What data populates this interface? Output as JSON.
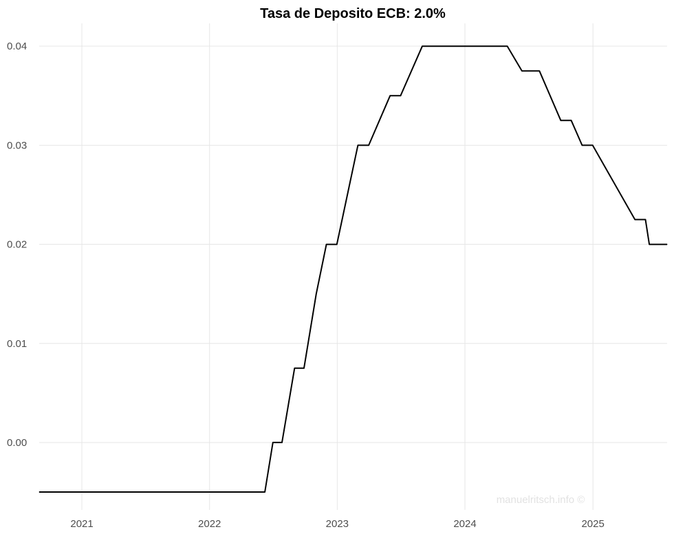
{
  "chart_data": {
    "type": "line",
    "title": "Tasa de Deposito ECB: 2.0%",
    "xlabel": "",
    "ylabel": "",
    "x_ticks": [
      "2021",
      "2022",
      "2023",
      "2024",
      "2025"
    ],
    "y_ticks": [
      "0.00",
      "0.01",
      "0.02",
      "0.03",
      "0.04"
    ],
    "xlim": [
      "2020-09-01",
      "2025-08-01"
    ],
    "ylim": [
      -0.0068,
      0.0423
    ],
    "grid": true,
    "legend": "none",
    "line_color": "#000000",
    "series": [
      {
        "points": [
          [
            "2020-09-01",
            -0.005
          ],
          [
            "2022-06-08",
            -0.005
          ],
          [
            "2022-07-01",
            0.0
          ],
          [
            "2022-07-27",
            0.0
          ],
          [
            "2022-09-01",
            0.0075
          ],
          [
            "2022-09-28",
            0.0075
          ],
          [
            "2022-11-02",
            0.015
          ],
          [
            "2022-12-01",
            0.02
          ],
          [
            "2022-12-31",
            0.02
          ],
          [
            "2023-03-01",
            0.03
          ],
          [
            "2023-04-01",
            0.03
          ],
          [
            "2023-06-01",
            0.035
          ],
          [
            "2023-07-01",
            0.035
          ],
          [
            "2023-09-01",
            0.04
          ],
          [
            "2024-05-01",
            0.04
          ],
          [
            "2024-06-12",
            0.0375
          ],
          [
            "2024-08-01",
            0.0375
          ],
          [
            "2024-10-01",
            0.0325
          ],
          [
            "2024-10-31",
            0.0325
          ],
          [
            "2024-12-01",
            0.03
          ],
          [
            "2024-12-31",
            0.03
          ],
          [
            "2025-05-01",
            0.0225
          ],
          [
            "2025-05-31",
            0.0225
          ],
          [
            "2025-06-11",
            0.02
          ],
          [
            "2025-08-01",
            0.02
          ]
        ]
      }
    ]
  },
  "watermark": "manuelritsch.info ©"
}
